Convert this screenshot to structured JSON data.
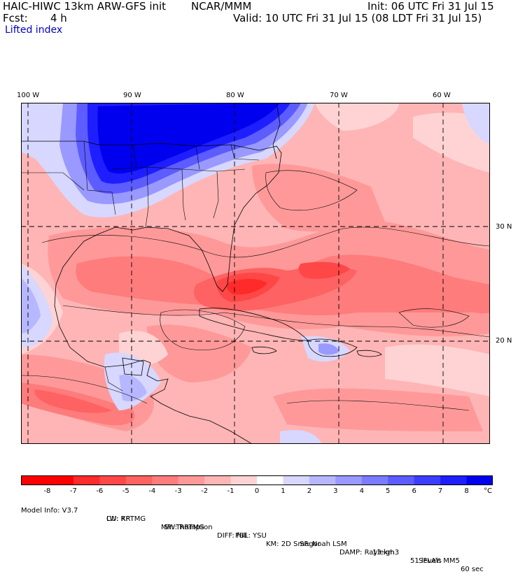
{
  "header": {
    "title": "HAIC-HIWC 13km ARW-GFS init",
    "org": "NCAR/MMM",
    "init": "Init: 06 UTC Fri 31 Jul 15",
    "fcst_label": "Fcst:",
    "fcst_value": "4 h",
    "valid": "Valid: 10 UTC Fri 31 Jul 15 (08 LDT Fri 31 Jul 15)",
    "field": "Lifted index"
  },
  "axes": {
    "lon_labels": [
      "100 W",
      "90 W",
      "80 W",
      "70 W",
      "60 W"
    ],
    "lat_labels": [
      "30 N",
      "20 N"
    ]
  },
  "colorbar": {
    "ticks": [
      "-8",
      "-7",
      "-6",
      "-5",
      "-4",
      "-3",
      "-2",
      "-1",
      "0",
      "1",
      "2",
      "3",
      "4",
      "5",
      "6",
      "7",
      "8"
    ],
    "unit": "°C",
    "colors": [
      "#ff0000",
      "#ff2a2a",
      "#ff4747",
      "#ff6262",
      "#ff7c7c",
      "#ff9999",
      "#ffb5b5",
      "#ffd3d3",
      "#ffffff",
      "#d7d7ff",
      "#b7b7ff",
      "#9999ff",
      "#7b7bff",
      "#5c5cff",
      "#3d3dff",
      "#1e1eff",
      "#0000ee"
    ]
  },
  "footer": {
    "line1": [
      "Model Info: V3.7",
      "CU: KF",
      "MP: Thompson",
      "PBL: YSU",
      "SF: Noah LSM",
      "13 km",
      "51 levels",
      "60 sec"
    ],
    "line2": [
      "LW: RRTMG",
      "SW: RRTMG",
      "DIFF: full",
      "KM: 2D Smagor",
      "DAMP: Rayleigh3",
      "SFLAY: MM5"
    ]
  }
}
